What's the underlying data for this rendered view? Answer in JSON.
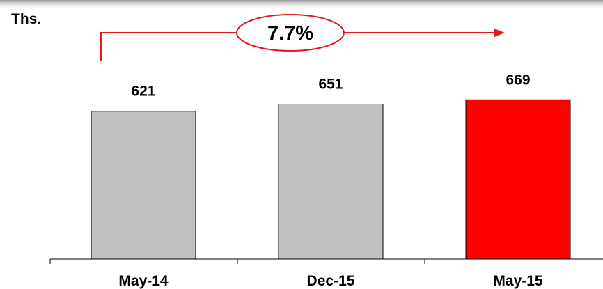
{
  "unit_label": "Ths.",
  "growth_label": "7.7%",
  "colors": {
    "bar_default": "#c0c0c0",
    "bar_highlight": "#ff0000",
    "accent": "#e31b1b",
    "text": "#000000"
  },
  "chart_data": {
    "type": "bar",
    "categories": [
      "May-14",
      "Dec-15",
      "May-15"
    ],
    "values": [
      621,
      651,
      669
    ],
    "data_labels": [
      "621",
      "651",
      "669"
    ],
    "highlight_index": 2,
    "title": "",
    "xlabel": "",
    "ylabel": "",
    "grid": false,
    "legend": "none",
    "annotation": {
      "text": "7.7%",
      "from_category": "May-14",
      "to_category": "May-15"
    }
  }
}
